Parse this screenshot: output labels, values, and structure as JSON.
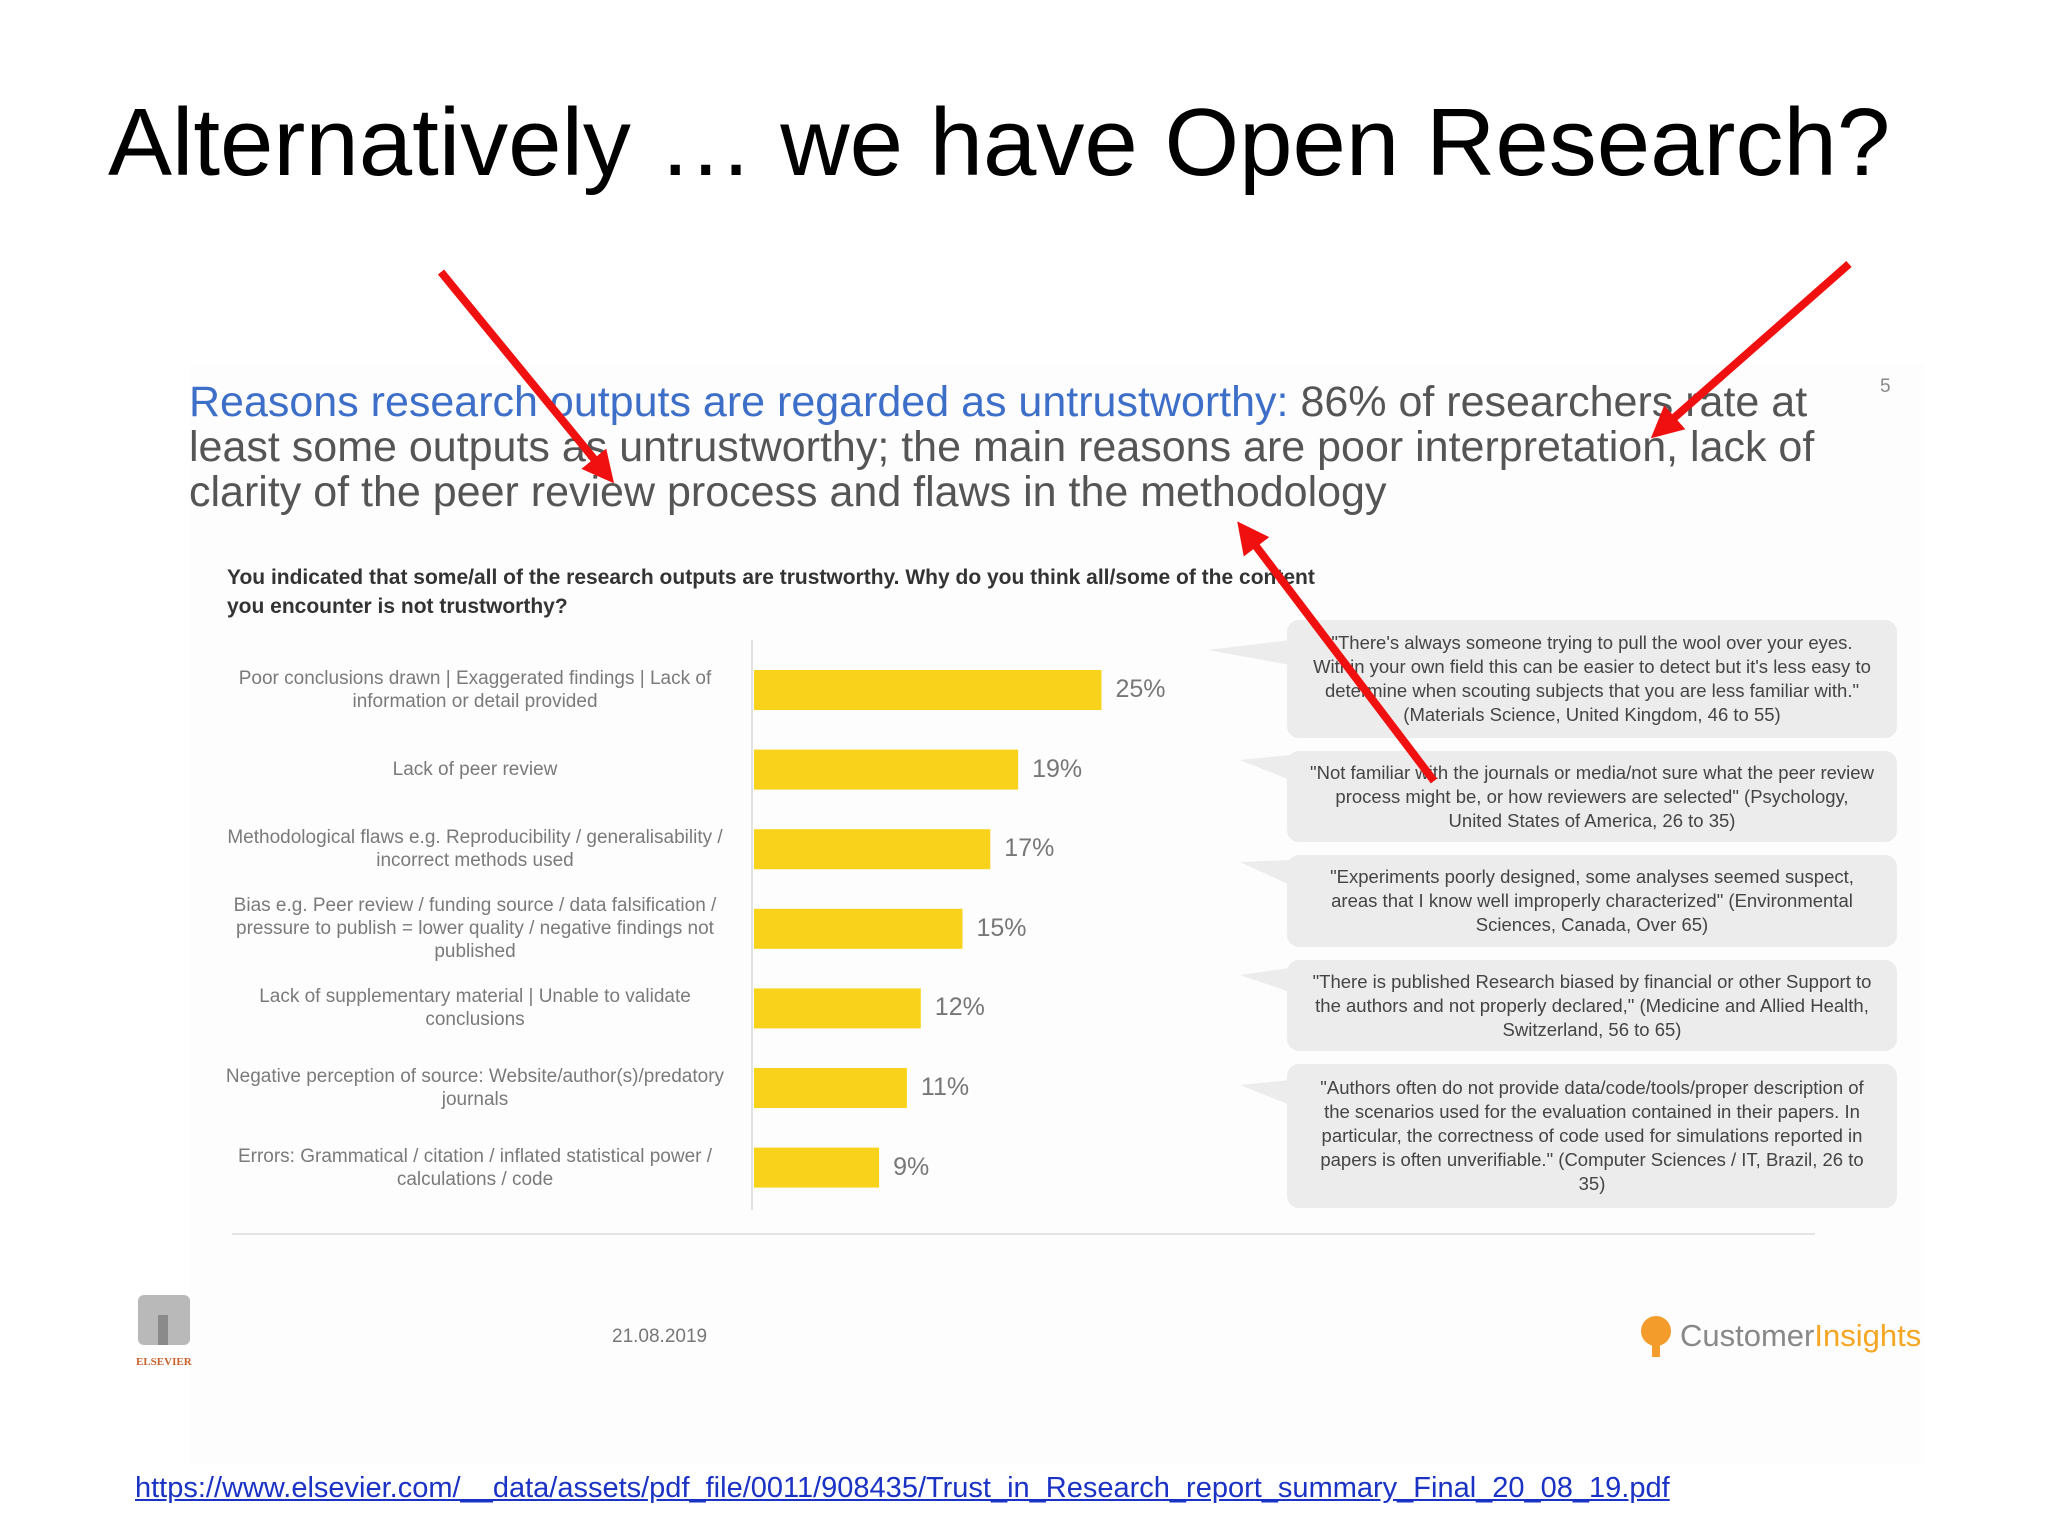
{
  "slide_title": "Alternatively … we have Open Research?",
  "page_number": "5",
  "heading": {
    "highlight": "Reasons research outputs are regarded as untrustworthy:",
    "text": "86% of researchers rate at least some outputs as untrustworthy; the main reasons are poor interpretation, lack of clarity of the peer review process and flaws in the methodology"
  },
  "chart_data": {
    "type": "bar",
    "orientation": "horizontal",
    "title": "You indicated that some/all of the research outputs are trustworthy. Why do you think all/some of the content you encounter is not trustworthy?",
    "categories": [
      "Poor conclusions drawn | Exaggerated findings | Lack of information or detail provided",
      "Lack of peer review",
      "Methodological flaws e.g. Reproducibility / generalisability / incorrect methods used",
      "Bias e.g. Peer review / funding source / data falsification / pressure to publish = lower quality / negative findings not published",
      "Lack of supplementary material | Unable to validate conclusions",
      "Negative perception of source: Website/author(s)/predatory journals",
      "Errors: Grammatical / citation / inflated statistical power / calculations / code"
    ],
    "values": [
      25,
      19,
      17,
      15,
      12,
      11,
      9
    ],
    "value_labels": [
      "25%",
      "19%",
      "17%",
      "15%",
      "12%",
      "11%",
      "9%"
    ],
    "color": "#f9d31b"
  },
  "quotes": [
    "\"There's always someone trying to pull the wool over your eyes. Within your own field this can be easier to detect but it's less easy to determine when scouting subjects that you are less familiar with.\" (Materials Science, United Kingdom, 46 to 55)",
    "\"Not familiar with the journals or media/not sure what the peer review process might be, or how reviewers are selected\" (Psychology, United States of America, 26 to 35)",
    "\"Experiments poorly designed, some analyses seemed suspect, areas that I know well improperly characterized\" (Environmental Sciences, Canada, Over 65)",
    "\"There is published Research biased by  financial or other Support to the authors and not properly declared,\" (Medicine and Allied Health, Switzerland, 56 to 65)",
    "\"Authors often do not provide data/code/tools/proper description of the scenarios used for the evaluation contained in their papers. In particular, the correctness of code used for simulations reported in papers is often unverifiable.\" (Computer Sciences / IT, Brazil, 26 to 35)"
  ],
  "footer": {
    "date": "21.08.2019",
    "publisher": "ELSEVIER",
    "brand_a": "Customer",
    "brand_b": "Insights"
  },
  "source_url": "https://www.elsevier.com/__data/assets/pdf_file/0011/908435/Trust_in_Research_report_summary_Final_20_08_19.pdf"
}
